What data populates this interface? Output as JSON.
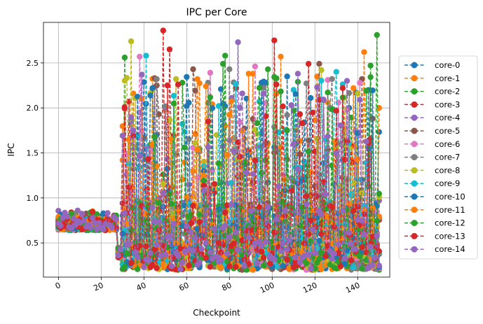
{
  "chart_data": {
    "type": "line",
    "title": "IPC per Core",
    "xlabel": "Checkpoint",
    "ylabel": "IPC",
    "xlim": [
      -7,
      155
    ],
    "ylim": [
      0.12,
      2.95
    ],
    "xticks": [
      0,
      20,
      40,
      60,
      80,
      100,
      120,
      140
    ],
    "xtick_labels": [
      "0",
      "20",
      "40",
      "60",
      "80",
      "100",
      "120",
      "140"
    ],
    "xtick_rotation": -25,
    "yticks": [
      0.5,
      1.0,
      1.5,
      2.0,
      2.5
    ],
    "ytick_labels": [
      "0.5",
      "1.0",
      "1.5",
      "2.0",
      "2.5"
    ],
    "grid": true,
    "legend_position": "outside-right",
    "line_style": "dashed",
    "marker": "circle",
    "n_checkpoints": 151,
    "series": [
      {
        "name": "core-0",
        "color": "#1f77b4",
        "peaks": [
          [
            32,
            0.86
          ],
          [
            60,
            2.02
          ],
          [
            97,
            2.28
          ],
          [
            107,
            2.35
          ],
          [
            136,
            2.0
          ]
        ]
      },
      {
        "name": "core-1",
        "color": "#ff7f0e",
        "peaks": [
          [
            35,
            2.16
          ],
          [
            91,
            2.38
          ],
          [
            104,
            2.57
          ],
          [
            143,
            2.62
          ],
          [
            150,
            2.0
          ]
        ]
      },
      {
        "name": "core-2",
        "color": "#2ca02c",
        "peaks": [
          [
            31,
            2.56
          ],
          [
            78,
            2.58
          ],
          [
            112,
            2.29
          ],
          [
            149,
            2.81
          ]
        ]
      },
      {
        "name": "core-3",
        "color": "#d62728",
        "peaks": [
          [
            33,
            2.07
          ],
          [
            49,
            2.86
          ],
          [
            52,
            2.65
          ],
          [
            101,
            2.75
          ],
          [
            117,
            2.49
          ]
        ]
      },
      {
        "name": "core-4",
        "color": "#9467bd",
        "peaks": [
          [
            45,
            2.23
          ],
          [
            84,
            2.73
          ],
          [
            112,
            2.38
          ],
          [
            139,
            1.75
          ]
        ]
      },
      {
        "name": "core-5",
        "color": "#8c564b",
        "peaks": [
          [
            45,
            2.33
          ],
          [
            63,
            2.43
          ],
          [
            83,
            2.22
          ],
          [
            122,
            2.49
          ]
        ]
      },
      {
        "name": "core-6",
        "color": "#e377c2",
        "peaks": [
          [
            38,
            2.57
          ],
          [
            71,
            2.39
          ],
          [
            92,
            2.46
          ],
          [
            126,
            2.31
          ]
        ]
      },
      {
        "name": "core-7",
        "color": "#7f7f7f",
        "peaks": [
          [
            46,
            2.32
          ],
          [
            70,
            2.28
          ],
          [
            80,
            2.43
          ],
          [
            127,
            2.0
          ]
        ]
      },
      {
        "name": "core-8",
        "color": "#bcbd22",
        "peaks": [
          [
            34,
            2.74
          ],
          [
            55,
            2.32
          ],
          [
            74,
            1.7
          ],
          [
            123,
            2.42
          ]
        ]
      },
      {
        "name": "core-9",
        "color": "#17becf",
        "peaks": [
          [
            41,
            2.58
          ],
          [
            110,
            2.2
          ],
          [
            130,
            2.4
          ]
        ]
      },
      {
        "name": "core-10",
        "color": "#1f77b4",
        "peaks": [
          [
            44,
            2.22
          ],
          [
            95,
            2.28
          ],
          [
            118,
            2.11
          ],
          [
            145,
            1.55
          ]
        ]
      },
      {
        "name": "core-11",
        "color": "#ff7f0e",
        "peaks": [
          [
            39,
            2.1
          ],
          [
            69,
            2.24
          ],
          [
            89,
            2.38
          ],
          [
            138,
            2.22
          ]
        ]
      },
      {
        "name": "core-12",
        "color": "#2ca02c",
        "peaks": [
          [
            58,
            2.28
          ],
          [
            77,
            2.49
          ],
          [
            98,
            2.43
          ],
          [
            146,
            2.47
          ]
        ]
      },
      {
        "name": "core-13",
        "color": "#d62728",
        "peaks": [
          [
            51,
            2.25
          ],
          [
            56,
            2.26
          ],
          [
            102,
            2.26
          ],
          [
            133,
            2.22
          ]
        ]
      },
      {
        "name": "core-14",
        "color": "#9467bd",
        "peaks": [
          [
            39,
            2.37
          ],
          [
            86,
            2.16
          ],
          [
            121,
            2.23
          ],
          [
            141,
            2.09
          ]
        ]
      }
    ]
  }
}
